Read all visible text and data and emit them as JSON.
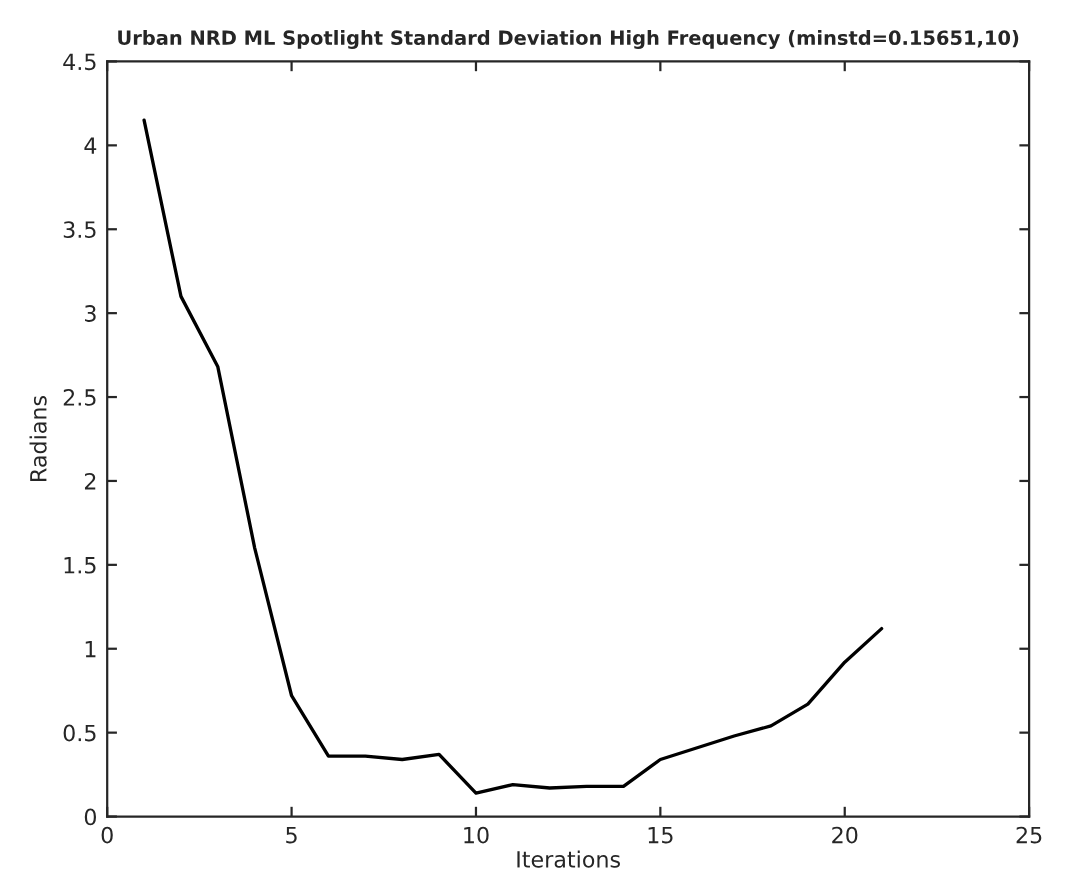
{
  "chart_data": {
    "type": "line",
    "title": "Urban NRD ML Spotlight Standard Deviation High Frequency (minstd=0.15651,10)",
    "xlabel": "Iterations",
    "ylabel": "Radians",
    "x": [
      1,
      2,
      3,
      4,
      5,
      6,
      7,
      8,
      9,
      10,
      11,
      12,
      13,
      14,
      15,
      16,
      17,
      18,
      19,
      20,
      21
    ],
    "series": [
      {
        "color": "#000000",
        "values": [
          4.15,
          3.1,
          2.68,
          1.6,
          0.72,
          0.36,
          0.36,
          0.34,
          0.37,
          0.14,
          0.19,
          0.17,
          0.18,
          0.18,
          0.34,
          0.41,
          0.48,
          0.54,
          0.67,
          0.92,
          1.12
        ]
      }
    ],
    "xlim": [
      0,
      25
    ],
    "xticks": [
      0,
      5,
      10,
      15,
      20,
      25
    ],
    "ylim": [
      0,
      4.5
    ],
    "yticks": [
      0,
      0.5,
      1,
      1.5,
      2,
      2.5,
      3,
      3.5,
      4,
      4.5
    ],
    "grid": false,
    "legend": false,
    "marker": "none",
    "line_style": "solid"
  }
}
